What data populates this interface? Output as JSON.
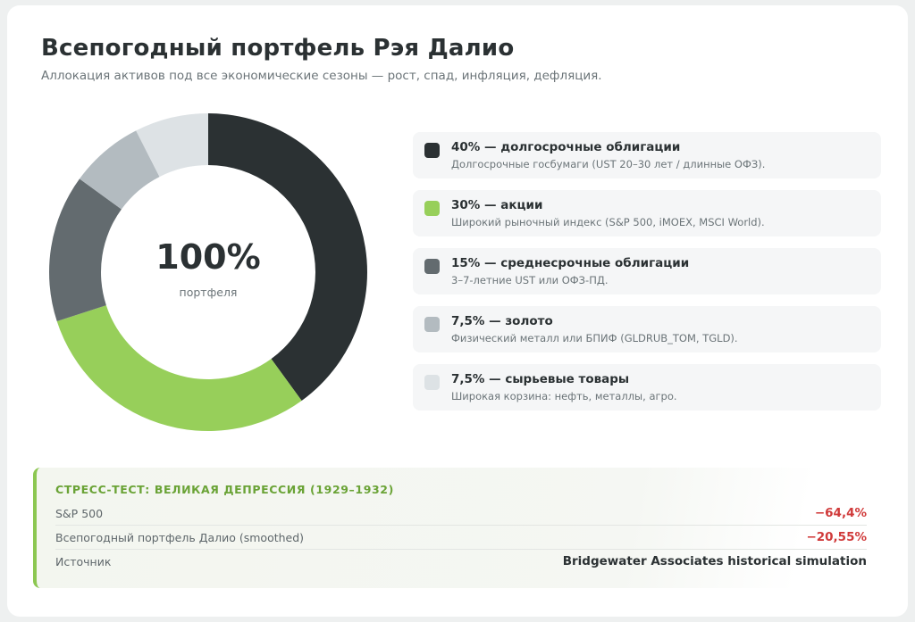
{
  "header": {
    "title": "Всепогодный портфель Рэя Далио",
    "subtitle": "Аллокация активов под все экономические сезоны — рост, спад, инфляция, дефляция."
  },
  "donut_center": {
    "value": "100%",
    "label": "портфеля"
  },
  "chart_data": {
    "type": "pie",
    "variant": "donut",
    "title": "Всепогодный портфель Рэя Далио",
    "slices": [
      {
        "label": "долгосрочные облигации",
        "value": 40,
        "color": "#2b3133"
      },
      {
        "label": "акции",
        "value": 30,
        "color": "#97cf5a"
      },
      {
        "label": "среднесрочные облигации",
        "value": 15,
        "color": "#636b6f"
      },
      {
        "label": "золото",
        "value": 7.5,
        "color": "#b3bbc0"
      },
      {
        "label": "сырьевые товары",
        "value": 7.5,
        "color": "#dde2e5"
      }
    ],
    "center_text": "100%",
    "legend_position": "right"
  },
  "legend": {
    "items": [
      {
        "title": "40% — долгосрочные облигации",
        "desc": "Долгосрочные госбумаги (UST 20–30 лет / длинные ОФЗ).",
        "color": "#2b3133"
      },
      {
        "title": "30% — акции",
        "desc": "Широкий рыночный индекс (S&P 500, iMOEX, MSCI World).",
        "color": "#97cf5a"
      },
      {
        "title": "15% — среднесрочные облигации",
        "desc": "3–7-летние UST или ОФЗ-ПД.",
        "color": "#636b6f"
      },
      {
        "title": "7,5% — золото",
        "desc": "Физический металл или БПИФ (GLDRUB_TOM, TGLD).",
        "color": "#b3bbc0"
      },
      {
        "title": "7,5% — сырьевые товары",
        "desc": "Широкая корзина: нефть, металлы, агро.",
        "color": "#dde2e5"
      }
    ]
  },
  "stress_test": {
    "title": "СТРЕСС-ТЕСТ: ВЕЛИКАЯ ДЕПРЕССИЯ (1929–1932)",
    "rows": [
      {
        "label": "S&P 500",
        "value": "−64,4%"
      },
      {
        "label": "Всепогодный портфель Далио (smoothed)",
        "value": "−20,55%"
      },
      {
        "label": "Источник",
        "value": "Bridgewater Associates historical simulation"
      }
    ]
  }
}
